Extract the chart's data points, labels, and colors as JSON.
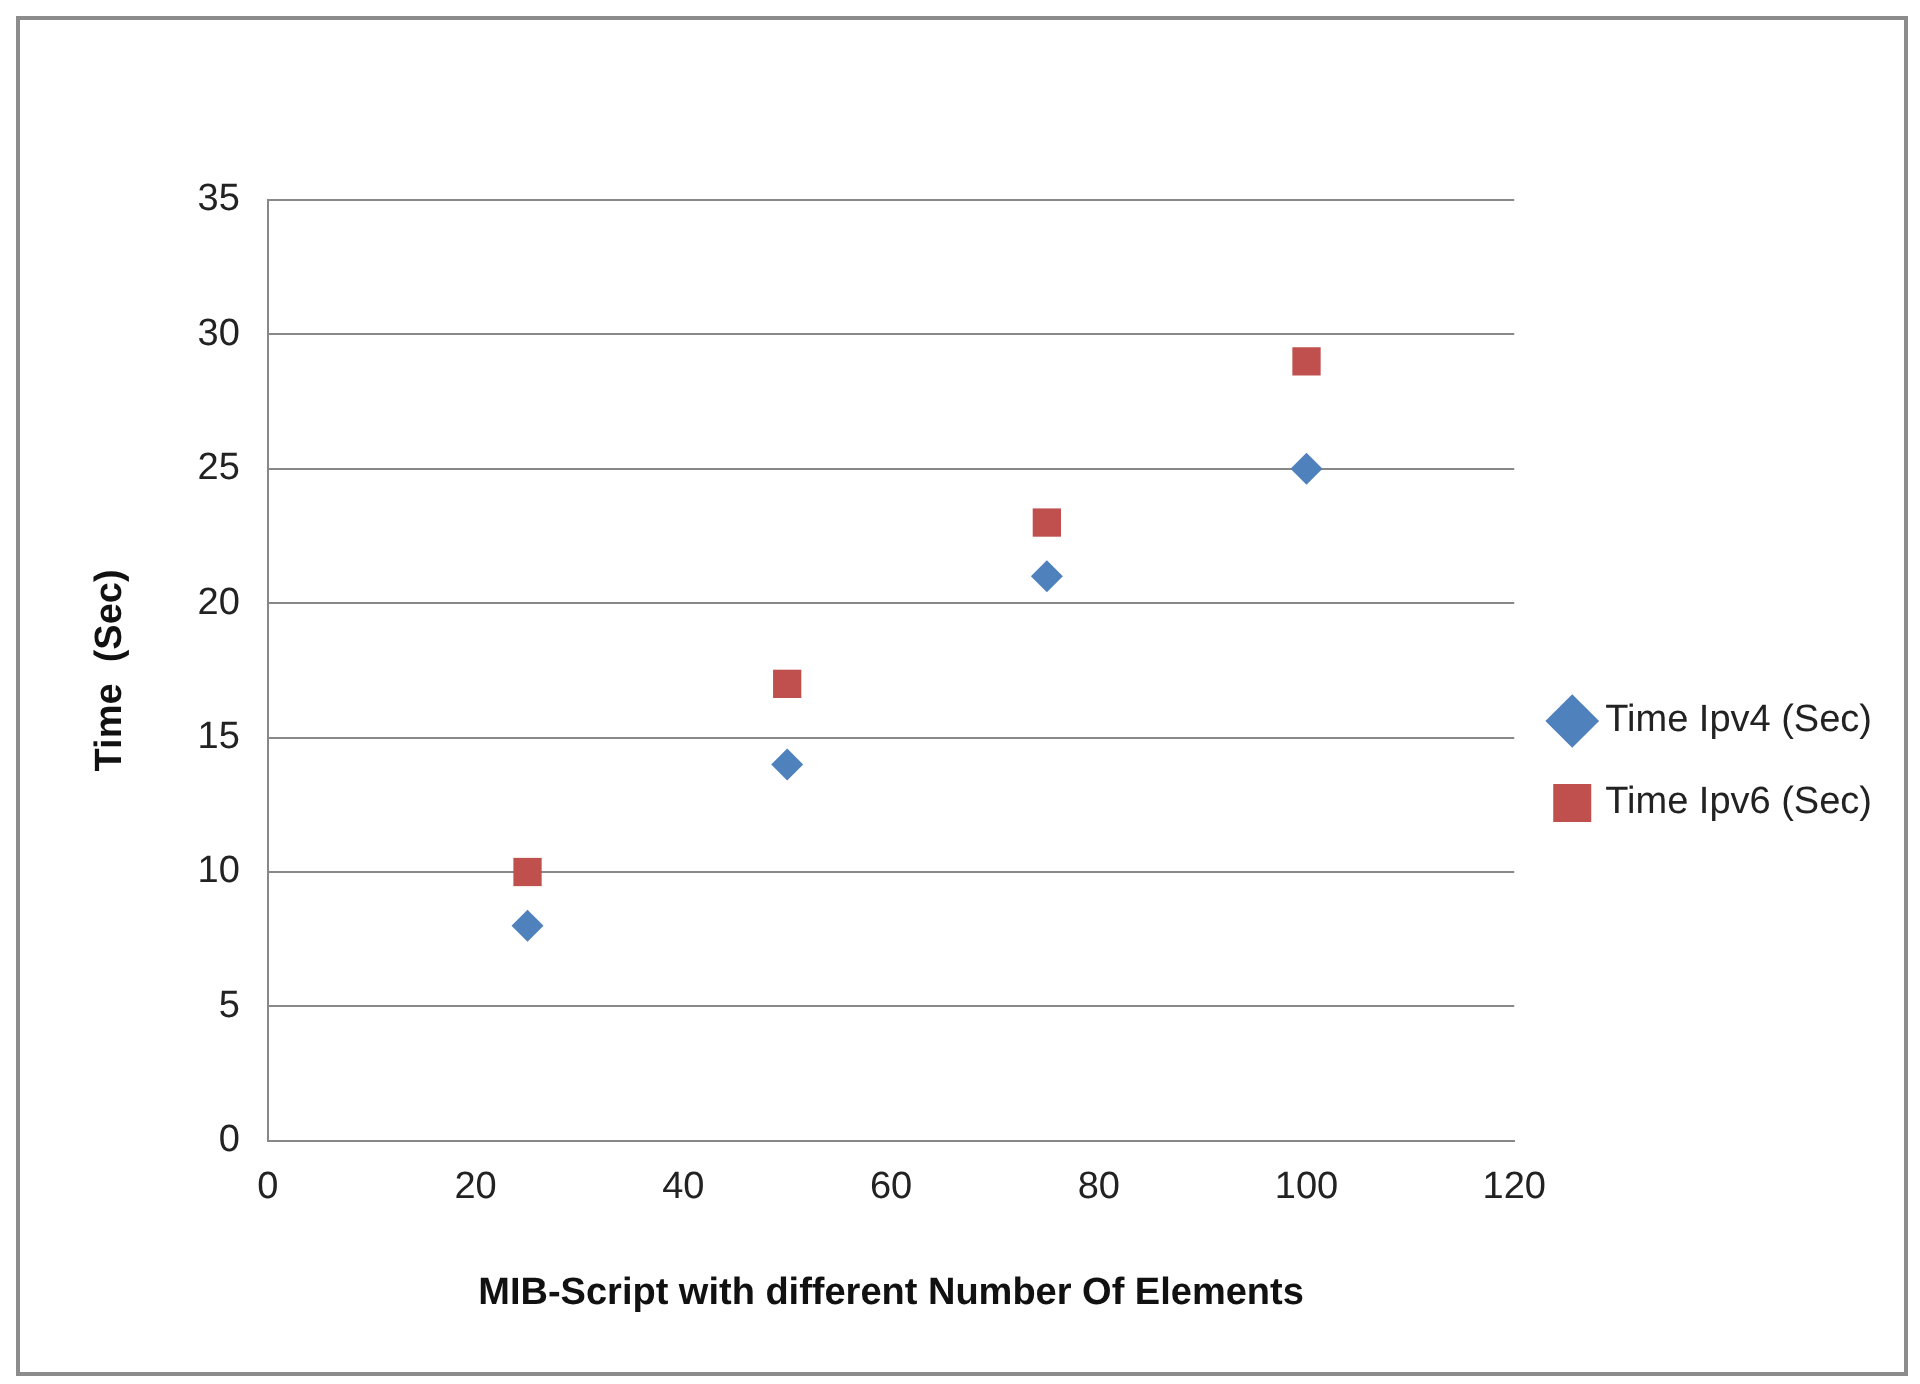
{
  "chart_data": {
    "type": "scatter",
    "xlabel": "MIB-Script with different Number Of Elements",
    "ylabel": "Time  (Sec)",
    "x": [
      25,
      50,
      75,
      100
    ],
    "series": [
      {
        "name": "Time Ipv4 (Sec)",
        "color": "#4f81bd",
        "marker": "diamond",
        "values": [
          8,
          14,
          21,
          25
        ]
      },
      {
        "name": "Time Ipv6 (Sec)",
        "color": "#c0504d",
        "marker": "square",
        "values": [
          10,
          17,
          23,
          29
        ]
      }
    ],
    "xlim": [
      0,
      120
    ],
    "xticks": [
      0,
      20,
      40,
      60,
      80,
      100,
      120
    ],
    "ylim": [
      0,
      35
    ],
    "yticks": [
      0,
      5,
      10,
      15,
      20,
      25,
      30,
      35
    ],
    "grid": "y",
    "legend": "right"
  }
}
